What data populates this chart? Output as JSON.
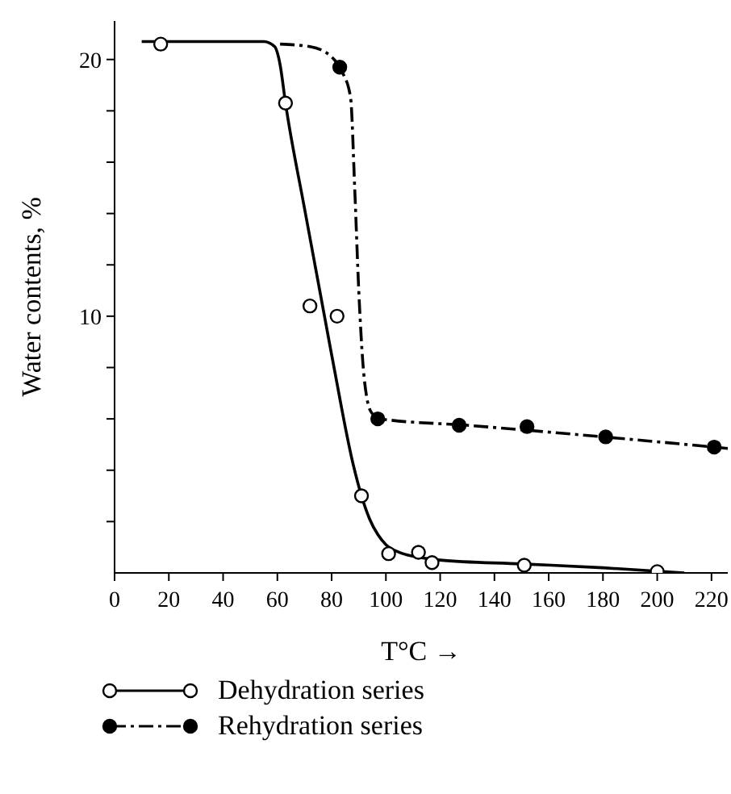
{
  "chart_data": {
    "type": "scatter",
    "xlabel": "T°C  →",
    "ylabel": "Water contents, %",
    "xlim": [
      0,
      226
    ],
    "xticks": [
      0,
      20,
      40,
      60,
      80,
      100,
      120,
      140,
      160,
      180,
      200,
      220
    ],
    "ylim": [
      0,
      21.5
    ],
    "yticks": [
      {
        "value": 2,
        "label": null
      },
      {
        "value": 4,
        "label": null
      },
      {
        "value": 6,
        "label": null
      },
      {
        "value": 8,
        "label": null
      },
      10,
      {
        "value": 12,
        "label": null
      },
      {
        "value": 14,
        "label": null
      },
      {
        "value": 16,
        "label": null
      },
      {
        "value": 18,
        "label": null
      },
      20
    ],
    "grid": false,
    "legend": "bottom",
    "series": [
      {
        "name": "Dehydration series",
        "marker": "circle",
        "color": "#000000",
        "x": [
          17,
          63,
          72,
          82,
          91,
          101,
          112,
          117,
          151,
          200
        ],
        "values": [
          20.6,
          18.3,
          10.4,
          10.0,
          3.0,
          0.75,
          0.8,
          0.4,
          0.3,
          0.05
        ]
      },
      {
        "type": "line",
        "color": "#000000",
        "line_style": "solid",
        "x": [
          10,
          55,
          59,
          61,
          63,
          70,
          80,
          88,
          91,
          94,
          97,
          100,
          105,
          110,
          120,
          150,
          180,
          210
        ],
        "values": [
          20.7,
          20.7,
          20.5,
          19.8,
          18.3,
          14.2,
          8.5,
          4.2,
          3.0,
          2.1,
          1.5,
          1.1,
          0.8,
          0.65,
          0.5,
          0.35,
          0.2,
          0.0
        ]
      },
      {
        "name": "Rehydration series",
        "marker": "circle",
        "color": "#000000",
        "x": [
          83,
          97,
          127,
          152,
          181,
          221
        ],
        "values": [
          19.7,
          6.0,
          5.75,
          5.7,
          5.3,
          4.9
        ]
      },
      {
        "type": "line",
        "color": "#000000",
        "line_style": "dashed",
        "x": [
          61,
          72,
          80,
          84,
          87,
          88.5,
          90,
          91.5,
          93,
          95,
          98,
          130,
          180,
          226
        ],
        "values": [
          20.6,
          20.5,
          20.1,
          19.5,
          18.5,
          15,
          11,
          8.2,
          6.8,
          6.2,
          6.0,
          5.75,
          5.3,
          4.85
        ]
      }
    ]
  }
}
